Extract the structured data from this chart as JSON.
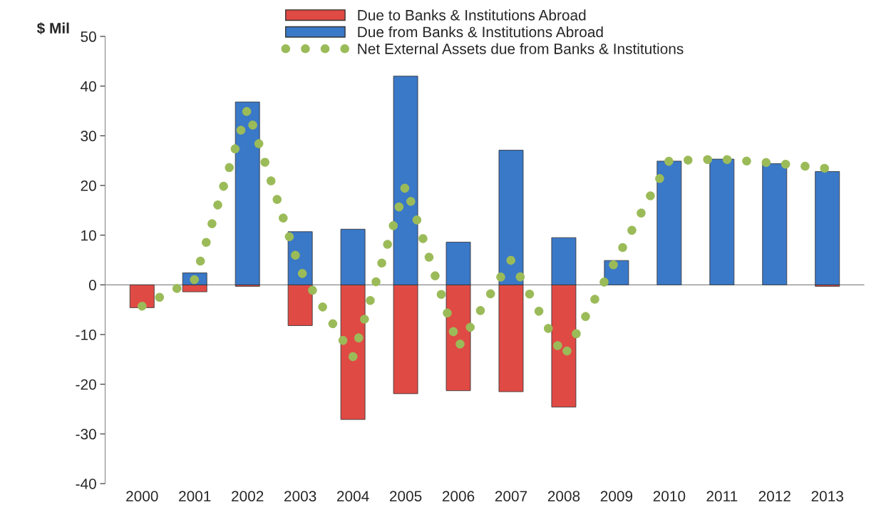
{
  "chart_data": {
    "type": "bar",
    "ylabel": "$ Mil",
    "stacked": true,
    "categories": [
      "2000",
      "2001",
      "2002",
      "2003",
      "2004",
      "2005",
      "2006",
      "2007",
      "2008",
      "2009",
      "2010",
      "2011",
      "2012",
      "2013"
    ],
    "series": [
      {
        "name": "Due to Banks & Institutions Abroad",
        "color": "#e04a45",
        "values": [
          -4.6,
          -1.4,
          -0.3,
          -8.2,
          -27.1,
          -21.9,
          -21.3,
          -21.5,
          -24.6,
          null,
          null,
          null,
          null,
          -0.3
        ]
      },
      {
        "name": "Due from Banks & Institutions Abroad",
        "color": "#3a78c8",
        "values": [
          null,
          2.4,
          36.8,
          10.7,
          11.2,
          42.0,
          8.6,
          27.1,
          9.5,
          4.9,
          24.9,
          25.3,
          24.4,
          22.8
        ]
      },
      {
        "name": "Net External Assets due from Banks & Institutions",
        "type": "line",
        "color": "#9bbb59",
        "line_style": "dotted",
        "values": [
          -4.3,
          1.1,
          35.4,
          3.0,
          -14.5,
          20.0,
          -12.5,
          5.0,
          -14.5,
          5.2,
          25.0,
          25.3,
          24.5,
          23.4
        ]
      }
    ],
    "ylim": [
      -40,
      50
    ],
    "yticks": [
      -40,
      -30,
      -20,
      -10,
      0,
      10,
      20,
      30,
      40,
      50
    ],
    "ref_lines": [
      {
        "axis": "y",
        "value": 0,
        "color": "#888888"
      }
    ],
    "grid": false,
    "legend": "top"
  }
}
